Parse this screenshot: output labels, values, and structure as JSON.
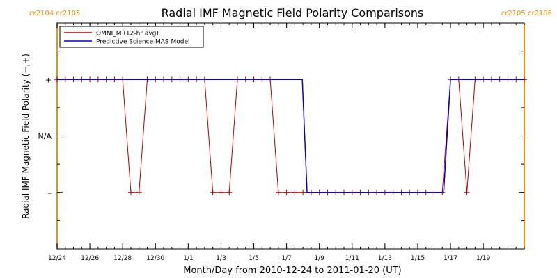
{
  "chart_data": {
    "type": "line",
    "title": "Radial IMF Magnetic Field Polarity Comparisons",
    "xlabel": "Month/Day from 2010-12-24 to 2011-01-20 (UT)",
    "ylabel": "Radial IMF Magnetic Field Polarity (−,+)",
    "xlim": [
      "2010-12-24 00:00",
      "2011-01-21 12:00"
    ],
    "ylim": [
      -2,
      2
    ],
    "y_tick_values": [
      1,
      0,
      -1
    ],
    "y_tick_labels": [
      "+",
      "N/A",
      "–"
    ],
    "x_tick_dates": [
      "2010-12-24",
      "2010-12-26",
      "2010-12-28",
      "2010-12-30",
      "2011-01-01",
      "2011-01-03",
      "2011-01-05",
      "2011-01-07",
      "2011-01-09",
      "2011-01-11",
      "2011-01-13",
      "2011-01-15",
      "2011-01-17",
      "2011-01-19"
    ],
    "x_tick_labels": [
      "12/24",
      "12/26",
      "12/28",
      "12/30",
      "1/1",
      "1/3",
      "1/5",
      "1/7",
      "1/9",
      "1/11",
      "1/13",
      "1/15",
      "1/17",
      "1/19"
    ],
    "legend_position": "top-left",
    "colors": {
      "omni": "#b00000",
      "model": "#0000d0",
      "boundary": "#ff8c00"
    },
    "carrington_markers": [
      {
        "date": "2010-12-24 00:00",
        "label": "cr2104  cr2105",
        "align": "left"
      },
      {
        "date": "2011-01-21 12:00",
        "label": "cr2105  cr2106",
        "align": "right"
      }
    ],
    "series": [
      {
        "name": "OMNI_M (12-hr avg)",
        "color": "#b00000",
        "marker": "plus",
        "points": [
          [
            "2010-12-24 00:00",
            1
          ],
          [
            "2010-12-24 12:00",
            1
          ],
          [
            "2010-12-25 00:00",
            1
          ],
          [
            "2010-12-25 12:00",
            1
          ],
          [
            "2010-12-26 00:00",
            1
          ],
          [
            "2010-12-26 12:00",
            1
          ],
          [
            "2010-12-27 00:00",
            1
          ],
          [
            "2010-12-27 12:00",
            1
          ],
          [
            "2010-12-28 00:00",
            1
          ],
          [
            "2010-12-28 12:00",
            -1
          ],
          [
            "2010-12-29 00:00",
            -1
          ],
          [
            "2010-12-29 12:00",
            1
          ],
          [
            "2010-12-30 00:00",
            1
          ],
          [
            "2010-12-30 12:00",
            1
          ],
          [
            "2010-12-31 00:00",
            1
          ],
          [
            "2010-12-31 12:00",
            1
          ],
          [
            "2011-01-01 00:00",
            1
          ],
          [
            "2011-01-01 12:00",
            1
          ],
          [
            "2011-01-02 00:00",
            1
          ],
          [
            "2011-01-02 12:00",
            -1
          ],
          [
            "2011-01-03 00:00",
            -1
          ],
          [
            "2011-01-03 12:00",
            -1
          ],
          [
            "2011-01-04 00:00",
            1
          ],
          [
            "2011-01-04 12:00",
            1
          ],
          [
            "2011-01-05 00:00",
            1
          ],
          [
            "2011-01-05 12:00",
            1
          ],
          [
            "2011-01-06 00:00",
            1
          ],
          [
            "2011-01-06 12:00",
            -1
          ],
          [
            "2011-01-07 00:00",
            -1
          ],
          [
            "2011-01-07 12:00",
            -1
          ],
          [
            "2011-01-08 00:00",
            -1
          ],
          [
            "2011-01-08 12:00",
            -1
          ],
          [
            "2011-01-09 00:00",
            -1
          ],
          [
            "2011-01-09 12:00",
            -1
          ],
          [
            "2011-01-10 00:00",
            -1
          ],
          [
            "2011-01-10 12:00",
            -1
          ],
          [
            "2011-01-11 00:00",
            -1
          ],
          [
            "2011-01-11 12:00",
            -1
          ],
          [
            "2011-01-12 00:00",
            -1
          ],
          [
            "2011-01-12 12:00",
            -1
          ],
          [
            "2011-01-13 00:00",
            -1
          ],
          [
            "2011-01-13 12:00",
            -1
          ],
          [
            "2011-01-14 00:00",
            -1
          ],
          [
            "2011-01-14 12:00",
            -1
          ],
          [
            "2011-01-15 00:00",
            -1
          ],
          [
            "2011-01-15 12:00",
            -1
          ],
          [
            "2011-01-16 00:00",
            -1
          ],
          [
            "2011-01-16 12:00",
            -1
          ],
          [
            "2011-01-17 00:00",
            1
          ],
          [
            "2011-01-17 12:00",
            1
          ],
          [
            "2011-01-18 00:00",
            -1
          ],
          [
            "2011-01-18 12:00",
            1
          ],
          [
            "2011-01-19 00:00",
            1
          ],
          [
            "2011-01-19 12:00",
            1
          ],
          [
            "2011-01-20 00:00",
            1
          ],
          [
            "2011-01-20 12:00",
            1
          ],
          [
            "2011-01-21 00:00",
            1
          ],
          [
            "2011-01-21 12:00",
            1
          ]
        ]
      },
      {
        "name": "Predictive Science MAS Model",
        "color": "#0000d0",
        "marker": "none",
        "points": [
          [
            "2010-12-24 00:00",
            1
          ],
          [
            "2011-01-07 23:00",
            1
          ],
          [
            "2011-01-08 06:00",
            -1
          ],
          [
            "2011-01-16 14:00",
            -1
          ],
          [
            "2011-01-17 00:00",
            1
          ],
          [
            "2011-01-21 12:00",
            1
          ]
        ]
      }
    ]
  }
}
